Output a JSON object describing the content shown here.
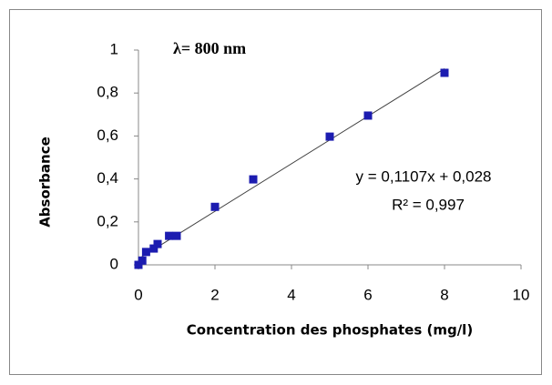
{
  "chart_data": {
    "type": "scatter",
    "annotation": "λ= 800 nm",
    "x_label": "Concentration des phosphates (mg/l)",
    "y_label": "Absorbance",
    "x": [
      0,
      0.1,
      0.2,
      0.4,
      0.5,
      0.8,
      1,
      2,
      3,
      5,
      6,
      8
    ],
    "values": [
      0,
      0.02,
      0.06,
      0.076,
      0.097,
      0.135,
      0.135,
      0.27,
      0.398,
      0.597,
      0.695,
      0.894
    ],
    "color": "#1c1cb0",
    "trendline": {
      "color": "#404040",
      "slope": 0.1107,
      "intercept": 0.028,
      "equation": "y = 0,1107x + 0,028",
      "r2": "R² = 0,997"
    },
    "xlim": [
      0,
      10
    ],
    "xticks": [
      0,
      2,
      4,
      6,
      8,
      10
    ],
    "ylim": [
      0,
      1
    ],
    "yticks": [
      0,
      {
        "value": 0.2,
        "label": "0,2"
      },
      {
        "value": 0.4,
        "label": "0,4"
      },
      {
        "value": 0.6,
        "label": "0,6"
      },
      {
        "value": 0.8,
        "label": "0,8"
      },
      1
    ],
    "grid": false
  }
}
